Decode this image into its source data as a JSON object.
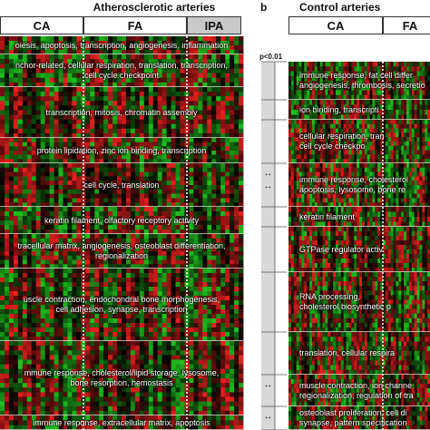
{
  "panels": [
    {
      "letter": "",
      "title": "Atherosclerotic arteries",
      "groups": [
        "CA",
        "FA",
        "IPA"
      ],
      "clusters": [
        {
          "label": "oiesis, apoptosis, transcription, angiogenesis, inflammation"
        },
        {
          "label": "nchor-related, cellular respiration, translation, transcription,\ncell cycle checkpoint"
        },
        {
          "label": "transcription, mitosis, chromatin assembly"
        },
        {
          "label": "protein lipidation, zinc ion binding, transcription"
        },
        {
          "label": "cell cycle, translation"
        },
        {
          "label": "keratin filament, olfactory receptory activity"
        },
        {
          "label": "tracellular matrix, angiogenesis, osteoblast differentiation,\nregionalization"
        },
        {
          "label": "uscle contraction, endochondral bone morphogenesis,\ncell adhesion, synapse, transcription"
        },
        {
          "label": "mmune response, cholesterol/lipid storage, lysosome,\nbone resorption, hemostasis"
        },
        {
          "label": "immune response, extracellular matrix, apoptosis"
        }
      ]
    },
    {
      "letter": "b",
      "title": "Control arteries",
      "groups": [
        "CA",
        "FA"
      ],
      "pvalue_label": "p<0.01",
      "arrow_symbol": "↔",
      "clusters": [
        {
          "label": "immune response, fat cell differ\nangiogenesis, thrombosis, secretio"
        },
        {
          "label": "ion binding, transcripti"
        },
        {
          "label": "cellular respiration, tran\ncell cycle checkpo"
        },
        {
          "label": "immune response, cholesterol\napoptosis, lysosome, bone re"
        },
        {
          "label": "keratin filament"
        },
        {
          "label": "GTPase regulator activ"
        },
        {
          "label": "RNA processing,\ncholesterol biosynthetic p"
        },
        {
          "label": "translation, cellular respira"
        },
        {
          "label": "muscle contraction, ion channe\nregionalization, regulation of tra"
        },
        {
          "label": "osteoblast proliferation, cell di\nsynapse, pattern specification"
        }
      ]
    }
  ],
  "colors": {
    "up": "#e82020",
    "down": "#20c020",
    "neutral": "#000000"
  }
}
